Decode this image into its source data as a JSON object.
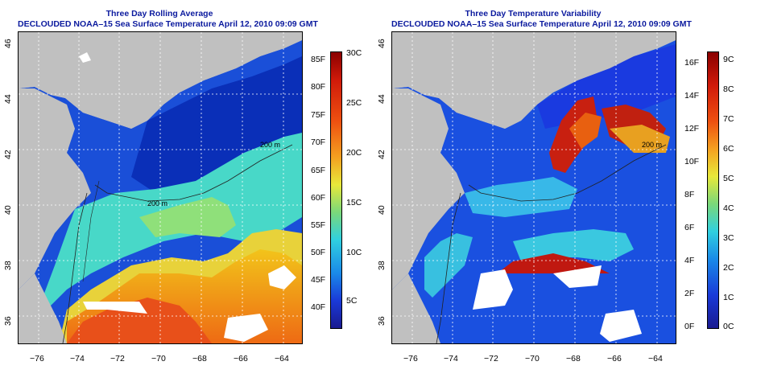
{
  "left": {
    "title": "Three Day Rolling Average",
    "subtitle": "DECLOUDED NOAA–15 Sea Surface Temperature April 12, 2010 09:09 GMT",
    "colorbar_f": [
      "85F",
      "80F",
      "75F",
      "70F",
      "65F",
      "60F",
      "55F",
      "50F",
      "45F",
      "40F"
    ],
    "colorbar_c": [
      "30C",
      "25C",
      "20C",
      "15C",
      "10C",
      "5C"
    ],
    "contour_labels": [
      "200 m",
      "200 m",
      "200 m",
      "200 m"
    ]
  },
  "right": {
    "title": "Three Day Temperature Variability",
    "subtitle": "DECLOUDED NOAA–15 Sea Surface Temperature April 12, 2010 09:09 GMT",
    "colorbar_f": [
      "16F",
      "14F",
      "12F",
      "10F",
      "8F",
      "6F",
      "4F",
      "2F",
      "0F"
    ],
    "colorbar_c": [
      "9C",
      "8C",
      "7C",
      "6C",
      "5C",
      "4C",
      "3C",
      "2C",
      "1C",
      "0C"
    ],
    "contour_labels": [
      "200 m",
      "200 m",
      "200 m"
    ]
  },
  "xticks": [
    "−76",
    "−74",
    "−72",
    "−70",
    "−68",
    "−66",
    "−64"
  ],
  "yticks": [
    "46",
    "44",
    "42",
    "40",
    "38",
    "36"
  ],
  "colors": {
    "land": "#c0c0c0",
    "title_blue": "#0b1a9e",
    "deep_blue": "#0a1f9a",
    "warm_orange": "#f08a1a",
    "yellow": "#e8e83a",
    "cyan": "#40d8e0",
    "red": "#c0180e"
  }
}
